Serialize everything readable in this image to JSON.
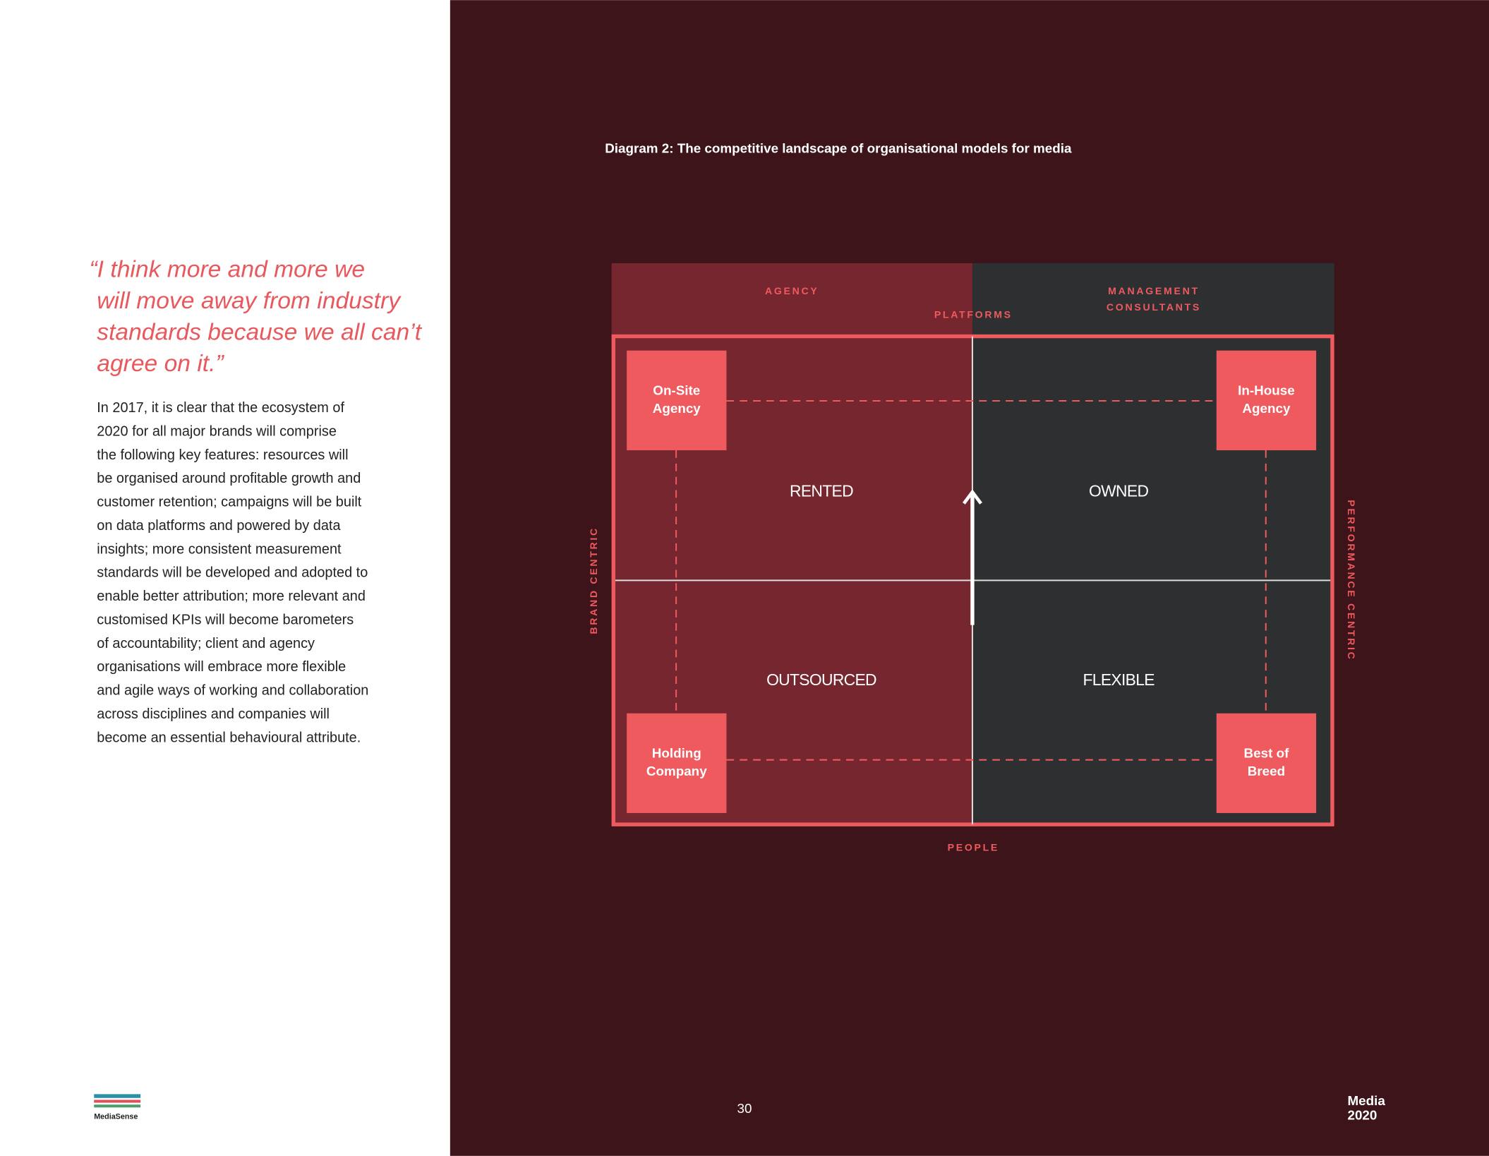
{
  "quote": {
    "lines": [
      "“I think more and more we",
      "will move away from industry",
      "standards because we all can’t",
      "agree on it.”"
    ]
  },
  "body": {
    "lines": [
      "In 2017, it is clear that the ecosystem of",
      "2020 for all major brands will comprise",
      "the following key features: resources will",
      "be organised around profitable growth and",
      "customer retention; campaigns will be built",
      "on data platforms and powered by data",
      "insights; more consistent measurement",
      "standards will be developed and adopted to",
      "enable better attribution; more relevant and",
      "customised KPIs will become barometers",
      "of accountability; client and agency",
      "organisations will embrace more flexible",
      "and agile ways of working and collaboration",
      "across disciplines and companies will",
      "become an essential behavioural attribute."
    ]
  },
  "logo": "MediaSense",
  "diagram": {
    "title": "Diagram 2: The competitive landscape of organisational models for media",
    "top_left": "AGENCY",
    "top_right": [
      "MANAGEMENT",
      "CONSULTANTS"
    ],
    "top_center": "PLATFORMS",
    "bottom": "PEOPLE",
    "left": "BRAND CENTRIC",
    "right": "PERFORMANCE CENTRIC",
    "quadrants": [
      "RENTED",
      "OWNED",
      "OUTSOURCED",
      "FLEXIBLE"
    ],
    "corners": [
      [
        "On-Site",
        "Agency"
      ],
      [
        "In-House",
        "Agency"
      ],
      [
        "Holding",
        "Company"
      ],
      [
        "Best of",
        "Breed"
      ]
    ]
  },
  "footer": {
    "page_number": 30,
    "brand": [
      "Media",
      "2020"
    ]
  }
}
